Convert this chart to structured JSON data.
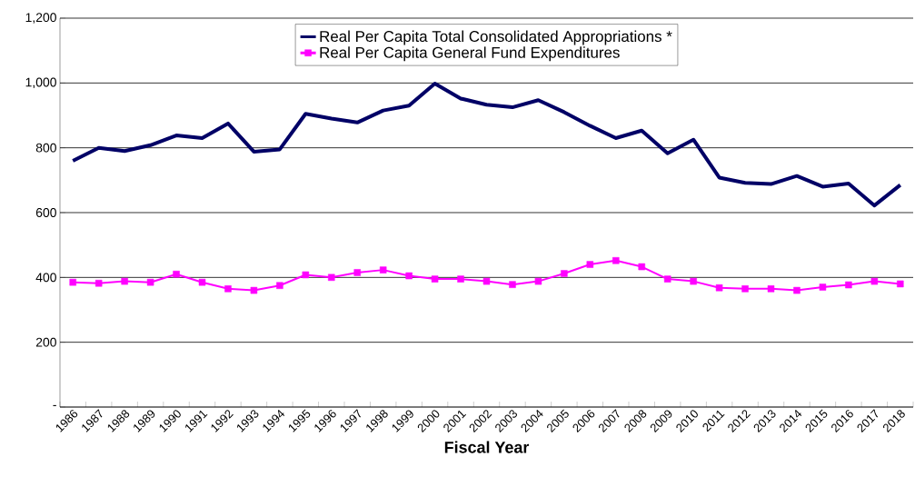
{
  "chart_data": {
    "type": "line",
    "xlabel": "Fiscal Year",
    "categories": [
      "1986",
      "1987",
      "1988",
      "1989",
      "1990",
      "1991",
      "1992",
      "1993",
      "1994",
      "1995",
      "1996",
      "1997",
      "1998",
      "1999",
      "2000",
      "2001",
      "2002",
      "2003",
      "2004",
      "2005",
      "2006",
      "2007",
      "2008",
      "2009",
      "2010",
      "2011",
      "2012",
      "2013",
      "2014",
      "2015",
      "2016",
      "2017",
      "2018"
    ],
    "series": [
      {
        "name": "Real Per Capita Total Consolidated Appropriations *",
        "color": "#000066",
        "marker": "none",
        "values": [
          760,
          800,
          790,
          808,
          838,
          830,
          875,
          788,
          795,
          905,
          890,
          878,
          915,
          930,
          998,
          952,
          933,
          925,
          947,
          910,
          868,
          830,
          853,
          783,
          825,
          708,
          692,
          688,
          713,
          680,
          690,
          622,
          685
        ]
      },
      {
        "name": "Real Per Capita General Fund Expenditures",
        "color": "#ff00ff",
        "marker": "square",
        "values": [
          385,
          382,
          388,
          385,
          410,
          385,
          365,
          360,
          375,
          408,
          400,
          415,
          423,
          405,
          395,
          395,
          388,
          378,
          388,
          412,
          440,
          452,
          433,
          395,
          388,
          368,
          365,
          365,
          360,
          370,
          377,
          388,
          380
        ]
      }
    ],
    "ylim": [
      0,
      1200
    ],
    "yticks": [
      {
        "value": 0,
        "label": "-"
      },
      200,
      400,
      600,
      800,
      {
        "value": 1000,
        "label": "1,000"
      },
      {
        "value": 1200,
        "label": "1,200"
      }
    ],
    "grid": "y",
    "legend": "top",
    "line_style": "solid"
  }
}
